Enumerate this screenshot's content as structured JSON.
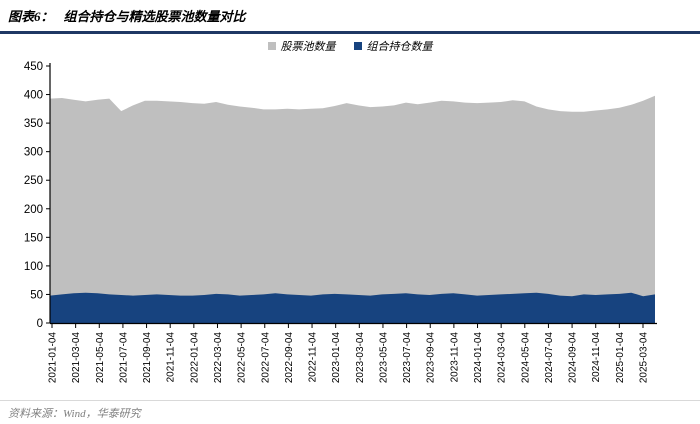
{
  "header": {
    "label": "图表6：",
    "title": "组合持仓与精选股票池数量对比"
  },
  "footer": {
    "source": "资料来源：Wind，华泰研究"
  },
  "chart_data": {
    "type": "area",
    "title": "组合持仓与精选股票池数量对比",
    "xlabel": "",
    "ylabel": "",
    "ylim": [
      0,
      450
    ],
    "y_ticks": [
      0,
      50,
      100,
      150,
      200,
      250,
      300,
      350,
      400,
      450
    ],
    "grid": false,
    "legend_position": "top-center",
    "x_tick_labels": [
      "2021-01-04",
      "2021-03-04",
      "2021-05-04",
      "2021-07-04",
      "2021-09-04",
      "2021-11-04",
      "2022-01-04",
      "2022-03-04",
      "2022-05-04",
      "2022-07-04",
      "2022-09-04",
      "2022-11-04",
      "2023-01-04",
      "2023-03-04",
      "2023-05-04",
      "2023-07-04",
      "2023-09-04",
      "2023-11-04",
      "2024-01-04",
      "2024-03-04",
      "2024-05-04",
      "2024-07-04",
      "2024-09-04",
      "2024-11-04",
      "2025-01-04",
      "2025-03-04"
    ],
    "series": [
      {
        "name": "股票池数量",
        "color": "#BFBFBF",
        "values": [
          393,
          394,
          391,
          388,
          391,
          393,
          371,
          381,
          389,
          389,
          388,
          387,
          385,
          384,
          387,
          382,
          379,
          377,
          374,
          374,
          375,
          374,
          375,
          376,
          380,
          385,
          381,
          378,
          379,
          381,
          386,
          383,
          386,
          389,
          388,
          386,
          385,
          386,
          387,
          390,
          388,
          379,
          374,
          371,
          370,
          370,
          372,
          374,
          377,
          382,
          389,
          398
        ]
      },
      {
        "name": "组合持仓数量",
        "color": "#17437F",
        "values": [
          48,
          50,
          52,
          53,
          52,
          50,
          49,
          48,
          49,
          50,
          49,
          48,
          48,
          49,
          51,
          50,
          48,
          49,
          50,
          52,
          50,
          49,
          48,
          50,
          51,
          50,
          49,
          48,
          50,
          51,
          52,
          50,
          49,
          51,
          52,
          50,
          48,
          49,
          50,
          51,
          52,
          53,
          51,
          48,
          47,
          50,
          49,
          50,
          51,
          53,
          47,
          50
        ]
      }
    ],
    "axis_color": "#000000"
  }
}
